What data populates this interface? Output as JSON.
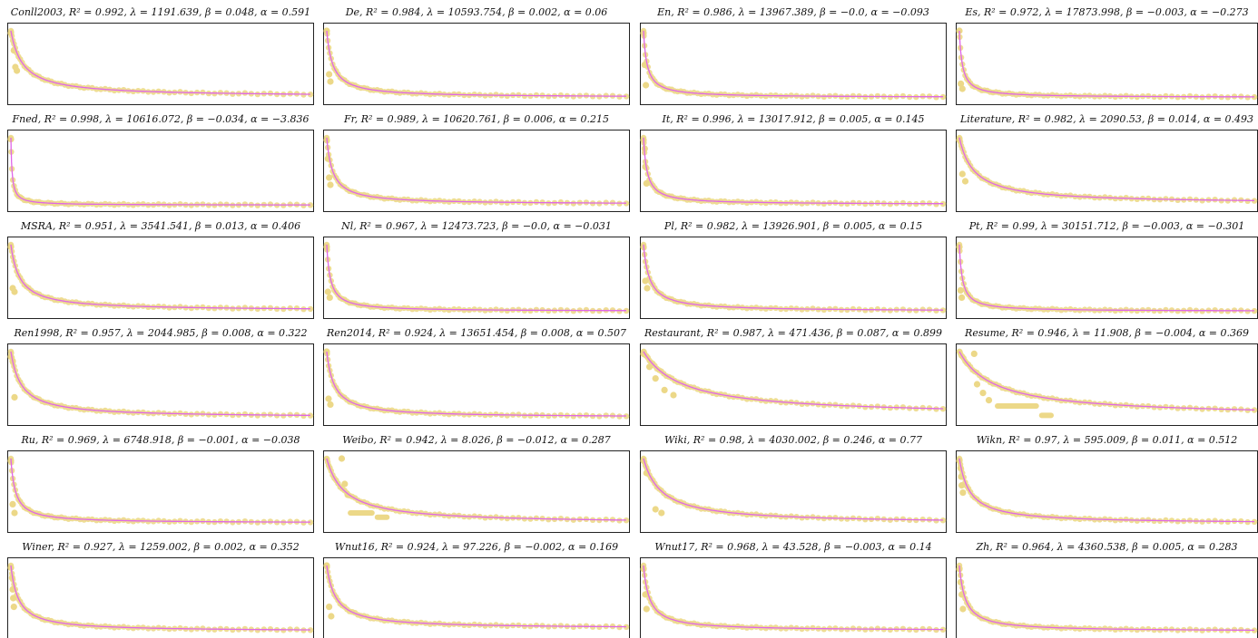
{
  "figure": {
    "colors": {
      "fit": "#e066e8",
      "points": "#ecd888",
      "frame": "#222222",
      "title": "#111111"
    }
  },
  "chart_data": [
    {
      "type": "scatter",
      "title": "Conll2003, R² = 0.992, λ = 1191.639, β = 0.048, α = 0.591",
      "params": {
        "dataset": "Conll2003",
        "r2": 0.992,
        "lambda": 1191.639,
        "beta": 0.048,
        "alpha": 0.591
      },
      "shape": {
        "decay": 0.04,
        "floor": 0.04,
        "outliers": [
          [
            0,
            0.92
          ],
          [
            0.01,
            0.68
          ],
          [
            0.015,
            0.45
          ],
          [
            0.02,
            0.4
          ]
        ],
        "band": null
      }
    },
    {
      "type": "scatter",
      "title": "De, R² = 0.984, λ = 10593.754, β = 0.002, α = 0.06",
      "params": {
        "dataset": "De",
        "r2": 0.984,
        "lambda": 10593.754,
        "beta": 0.002,
        "alpha": 0.06
      },
      "shape": {
        "decay": 0.02,
        "floor": 0.03,
        "outliers": [
          [
            0,
            0.95
          ],
          [
            0.008,
            0.35
          ],
          [
            0.012,
            0.25
          ]
        ],
        "band": null
      }
    },
    {
      "type": "scatter",
      "title": "En, R² = 0.986, λ = 13967.389, β = −0.0, α = −0.093",
      "params": {
        "dataset": "En",
        "r2": 0.986,
        "lambda": 13967.389,
        "beta": -0.0,
        "alpha": -0.093
      },
      "shape": {
        "decay": 0.012,
        "floor": 0.03,
        "outliers": [
          [
            0,
            0.92
          ],
          [
            0.004,
            0.48
          ],
          [
            0.008,
            0.2
          ]
        ],
        "band": null
      }
    },
    {
      "type": "scatter",
      "title": "Es, R² = 0.972, λ = 17873.998, β = −0.003, α = −0.273",
      "params": {
        "dataset": "Es",
        "r2": 0.972,
        "lambda": 17873.998,
        "beta": -0.003,
        "alpha": -0.273
      },
      "shape": {
        "decay": 0.01,
        "floor": 0.03,
        "outliers": [
          [
            0,
            0.95
          ],
          [
            0.005,
            0.22
          ],
          [
            0.01,
            0.15
          ]
        ],
        "band": null
      }
    },
    {
      "type": "scatter",
      "title": "Fned, R² = 0.998, λ = 10616.072, β = −0.034, α = −3.836",
      "params": {
        "dataset": "Fned",
        "r2": 0.998,
        "lambda": 10616.072,
        "beta": -0.034,
        "alpha": -3.836
      },
      "shape": {
        "decay": 0.004,
        "floor": 0.02,
        "outliers": [
          [
            0,
            0.93
          ]
        ],
        "band": null
      }
    },
    {
      "type": "scatter",
      "title": "Fr, R² = 0.989, λ = 10620.761, β = 0.006, α = 0.215",
      "params": {
        "dataset": "Fr",
        "r2": 0.989,
        "lambda": 10620.761,
        "beta": 0.006,
        "alpha": 0.215
      },
      "shape": {
        "decay": 0.02,
        "floor": 0.03,
        "outliers": [
          [
            0,
            0.92
          ],
          [
            0.004,
            0.66
          ],
          [
            0.008,
            0.4
          ],
          [
            0.012,
            0.3
          ]
        ],
        "band": null
      }
    },
    {
      "type": "scatter",
      "title": "It, R² = 0.996, λ = 13017.912, β = 0.005, α = 0.145",
      "params": {
        "dataset": "It",
        "r2": 0.996,
        "lambda": 13017.912,
        "beta": 0.005,
        "alpha": 0.145
      },
      "shape": {
        "decay": 0.012,
        "floor": 0.03,
        "outliers": [
          [
            0,
            0.92
          ],
          [
            0.004,
            0.8
          ],
          [
            0.006,
            0.55
          ],
          [
            0.01,
            0.32
          ]
        ],
        "band": null
      }
    },
    {
      "type": "scatter",
      "title": "Literature, R² = 0.982, λ = 2090.53, β = 0.014, α = 0.493",
      "params": {
        "dataset": "Literature",
        "r2": 0.982,
        "lambda": 2090.53,
        "beta": 0.014,
        "alpha": 0.493
      },
      "shape": {
        "decay": 0.05,
        "floor": 0.04,
        "outliers": [
          [
            0,
            0.92
          ],
          [
            0.01,
            0.45
          ],
          [
            0.02,
            0.35
          ]
        ],
        "band": null
      }
    },
    {
      "type": "scatter",
      "title": "MSRA, R² = 0.951, λ = 3541.541, β = 0.013, α = 0.406",
      "params": {
        "dataset": "MSRA",
        "r2": 0.951,
        "lambda": 3541.541,
        "beta": 0.013,
        "alpha": 0.406
      },
      "shape": {
        "decay": 0.03,
        "floor": 0.04,
        "outliers": [
          [
            0,
            0.92
          ],
          [
            0.006,
            0.35
          ],
          [
            0.012,
            0.3
          ]
        ],
        "band": null
      }
    },
    {
      "type": "scatter",
      "title": "Nl, R² = 0.967, λ = 12473.723, β = −0.0, α = −0.031",
      "params": {
        "dataset": "Nl",
        "r2": 0.967,
        "lambda": 12473.723,
        "beta": -0.0,
        "alpha": -0.031
      },
      "shape": {
        "decay": 0.012,
        "floor": 0.03,
        "outliers": [
          [
            0,
            0.92
          ],
          [
            0.004,
            0.3
          ],
          [
            0.01,
            0.22
          ]
        ],
        "band": null
      }
    },
    {
      "type": "scatter",
      "title": "Pl, R² = 0.982, λ = 13926.901, β = 0.005, α = 0.15",
      "params": {
        "dataset": "Pl",
        "r2": 0.982,
        "lambda": 13926.901,
        "beta": 0.005,
        "alpha": 0.15
      },
      "shape": {
        "decay": 0.02,
        "floor": 0.03,
        "outliers": [
          [
            0,
            0.92
          ],
          [
            0.006,
            0.45
          ],
          [
            0.012,
            0.35
          ]
        ],
        "band": null
      }
    },
    {
      "type": "scatter",
      "title": "Pt, R² = 0.99, λ = 30151.712, β = −0.003, α = −0.301",
      "params": {
        "dataset": "Pt",
        "r2": 0.99,
        "lambda": 30151.712,
        "beta": -0.003,
        "alpha": -0.301
      },
      "shape": {
        "decay": 0.01,
        "floor": 0.03,
        "outliers": [
          [
            0,
            0.92
          ],
          [
            0.004,
            0.32
          ],
          [
            0.008,
            0.22
          ]
        ],
        "band": null
      }
    },
    {
      "type": "scatter",
      "title": "Ren1998, R² = 0.957, λ = 2044.985, β = 0.008, α = 0.322",
      "params": {
        "dataset": "Ren1998",
        "r2": 0.957,
        "lambda": 2044.985,
        "beta": 0.008,
        "alpha": 0.322
      },
      "shape": {
        "decay": 0.035,
        "floor": 0.04,
        "outliers": [
          [
            0,
            0.88
          ],
          [
            0.006,
            0.82
          ],
          [
            0.012,
            0.32
          ]
        ],
        "band": null
      }
    },
    {
      "type": "scatter",
      "title": "Ren2014, R² = 0.924, λ = 13651.454, β = 0.008, α = 0.507",
      "params": {
        "dataset": "Ren2014",
        "r2": 0.924,
        "lambda": 13651.454,
        "beta": 0.008,
        "alpha": 0.507
      },
      "shape": {
        "decay": 0.025,
        "floor": 0.04,
        "outliers": [
          [
            0,
            0.95
          ],
          [
            0.006,
            0.3
          ],
          [
            0.012,
            0.22
          ]
        ],
        "band": null
      }
    },
    {
      "type": "scatter",
      "title": "Restaurant, R² = 0.987, λ = 471.436, β = 0.087, α = 0.899",
      "params": {
        "dataset": "Restaurant",
        "r2": 0.987,
        "lambda": 471.436,
        "beta": 0.087,
        "alpha": 0.899
      },
      "shape": {
        "decay": 0.13,
        "floor": 0.06,
        "outliers": [
          [
            0,
            0.92
          ],
          [
            0.02,
            0.74
          ],
          [
            0.04,
            0.58
          ],
          [
            0.07,
            0.42
          ],
          [
            0.1,
            0.35
          ]
        ],
        "band": null
      }
    },
    {
      "type": "scatter",
      "title": "Resume, R² = 0.946, λ = 11.908, β = −0.004, α = 0.369",
      "params": {
        "dataset": "Resume",
        "r2": 0.946,
        "lambda": 11.908,
        "beta": -0.004,
        "alpha": 0.369
      },
      "shape": {
        "decay": 0.12,
        "floor": 0.05,
        "outliers": [
          [
            0.05,
            0.92
          ],
          [
            0.06,
            0.5
          ],
          [
            0.08,
            0.38
          ],
          [
            0.1,
            0.28
          ]
        ],
        "band": [
          0.12,
          0.27,
          0.2,
          0.07
        ]
      }
    },
    {
      "type": "scatter",
      "title": "Ru, R² = 0.969, λ = 6748.918, β = −0.001, α = −0.038",
      "params": {
        "dataset": "Ru",
        "r2": 0.969,
        "lambda": 6748.918,
        "beta": -0.001,
        "alpha": -0.038
      },
      "shape": {
        "decay": 0.015,
        "floor": 0.06,
        "outliers": [
          [
            0,
            0.92
          ],
          [
            0.006,
            0.32
          ],
          [
            0.012,
            0.2
          ]
        ],
        "band": null
      }
    },
    {
      "type": "scatter",
      "title": "Weibo, R² = 0.942, λ = 8.026, β = −0.012, α = 0.287",
      "params": {
        "dataset": "Weibo",
        "r2": 0.942,
        "lambda": 8.026,
        "beta": -0.012,
        "alpha": 0.287
      },
      "shape": {
        "decay": 0.06,
        "floor": 0.05,
        "outliers": [
          [
            0.05,
            0.95
          ],
          [
            0.06,
            0.6
          ],
          [
            0.07,
            0.45
          ]
        ],
        "band": [
          0.07,
          0.16,
          0.2,
          0.14
        ]
      }
    },
    {
      "type": "scatter",
      "title": "Wiki, R² = 0.98, λ = 4030.002, β = 0.246, α = 0.77",
      "params": {
        "dataset": "Wiki",
        "r2": 0.98,
        "lambda": 4030.002,
        "beta": 0.246,
        "alpha": 0.77
      },
      "shape": {
        "decay": 0.06,
        "floor": 0.05,
        "outliers": [
          [
            0,
            0.92
          ],
          [
            0.01,
            0.75
          ],
          [
            0.04,
            0.25
          ],
          [
            0.06,
            0.2
          ]
        ],
        "band": null
      }
    },
    {
      "type": "scatter",
      "title": "Wikn, R² = 0.97, λ = 595.009, β = 0.011, α = 0.512",
      "params": {
        "dataset": "Wikn",
        "r2": 0.97,
        "lambda": 595.009,
        "beta": 0.011,
        "alpha": 0.512
      },
      "shape": {
        "decay": 0.035,
        "floor": 0.05,
        "outliers": [
          [
            0,
            0.92
          ],
          [
            0.004,
            0.82
          ],
          [
            0.006,
            0.7
          ],
          [
            0.008,
            0.58
          ],
          [
            0.012,
            0.48
          ]
        ],
        "band": null
      }
    },
    {
      "type": "scatter",
      "title": "Winer, R² = 0.927, λ = 1259.002, β = 0.002, α = 0.352",
      "params": {
        "dataset": "Winer",
        "r2": 0.927,
        "lambda": 1259.002,
        "beta": 0.002,
        "alpha": 0.352
      },
      "shape": {
        "decay": 0.025,
        "floor": 0.04,
        "outliers": [
          [
            0,
            0.92
          ],
          [
            0.004,
            0.78
          ],
          [
            0.006,
            0.62
          ],
          [
            0.008,
            0.5
          ],
          [
            0.01,
            0.38
          ]
        ],
        "band": null
      }
    },
    {
      "type": "scatter",
      "title": "Wnut16, R² = 0.924, λ = 97.226, β = −0.002, α = 0.169",
      "params": {
        "dataset": "Wnut16",
        "r2": 0.924,
        "lambda": 97.226,
        "beta": -0.002,
        "alpha": 0.169
      },
      "shape": {
        "decay": 0.03,
        "floor": 0.08,
        "outliers": [
          [
            0,
            0.95
          ],
          [
            0.008,
            0.38
          ],
          [
            0.015,
            0.25
          ]
        ],
        "band": null
      }
    },
    {
      "type": "scatter",
      "title": "Wnut17, R² = 0.968, λ = 43.528, β = −0.003, α = 0.14",
      "params": {
        "dataset": "Wnut17",
        "r2": 0.968,
        "lambda": 43.528,
        "beta": -0.003,
        "alpha": 0.14
      },
      "shape": {
        "decay": 0.02,
        "floor": 0.05,
        "outliers": [
          [
            0,
            0.9
          ],
          [
            0.006,
            0.55
          ],
          [
            0.01,
            0.35
          ]
        ],
        "band": null
      }
    },
    {
      "type": "scatter",
      "title": "Zh, R² = 0.964, λ = 4360.538, β = 0.005, α = 0.283",
      "params": {
        "dataset": "Zh",
        "r2": 0.964,
        "lambda": 4360.538,
        "beta": 0.005,
        "alpha": 0.283
      },
      "shape": {
        "decay": 0.02,
        "floor": 0.04,
        "outliers": [
          [
            0,
            0.9
          ],
          [
            0.004,
            0.72
          ],
          [
            0.008,
            0.55
          ],
          [
            0.012,
            0.35
          ]
        ],
        "band": null
      }
    }
  ]
}
